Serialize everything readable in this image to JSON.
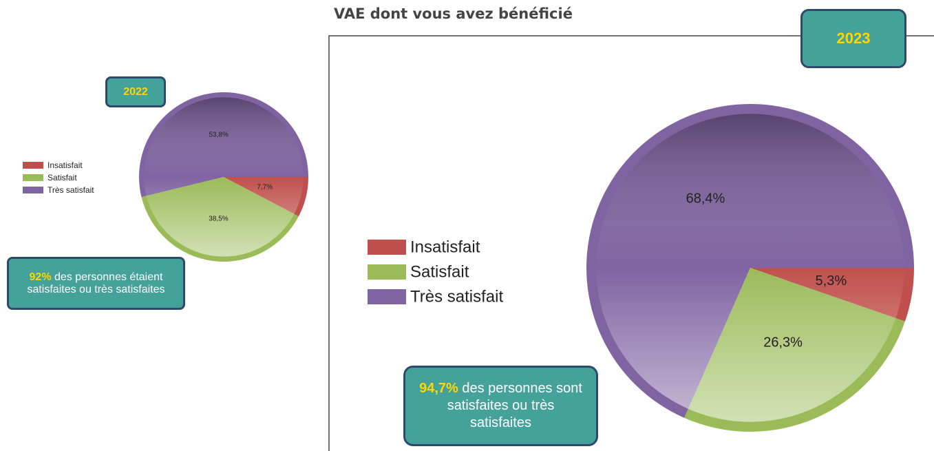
{
  "chart_data": [
    {
      "type": "pie",
      "badge": "2022",
      "categories": [
        "Insatisfait",
        "Satisfait",
        "Très satisfait"
      ],
      "colors": [
        "#c0504d",
        "#9bbb59",
        "#8064a2"
      ],
      "values": [
        7.7,
        38.5,
        53.8
      ],
      "value_labels": [
        "7,7%",
        "38,5%",
        "53,8%"
      ],
      "annotation": {
        "highlight": "92%",
        "text": "des personnes étaient satisfaites ou très satisfaites"
      }
    },
    {
      "type": "pie",
      "title": "VAE dont vous avez bénéficié",
      "badge": "2023",
      "categories": [
        "Insatisfait",
        "Satisfait",
        "Très satisfait"
      ],
      "colors": [
        "#c0504d",
        "#9bbb59",
        "#8064a2"
      ],
      "values": [
        5.3,
        26.3,
        68.4
      ],
      "value_labels": [
        "5,3%",
        "26,3%",
        "68,4%"
      ],
      "annotation": {
        "highlight": "94,7%",
        "text": "des personnes sont satisfaites ou très satisfaites"
      }
    }
  ]
}
